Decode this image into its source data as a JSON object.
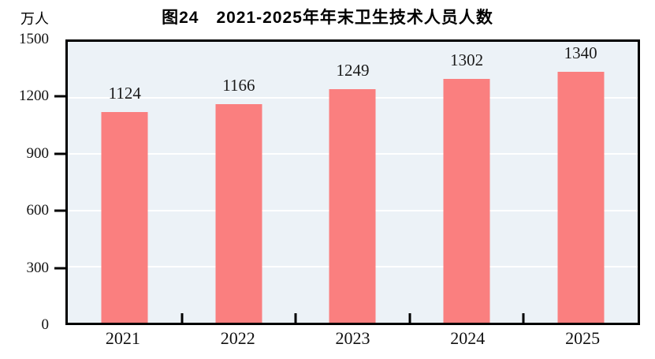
{
  "chart_data": {
    "type": "bar",
    "title": "图24　2021-2025年年末卫生技术人员人数",
    "unit_label": "万人",
    "categories": [
      "2021",
      "2022",
      "2023",
      "2024",
      "2025"
    ],
    "values": [
      1124,
      1166,
      1249,
      1302,
      1340
    ],
    "ylim": [
      0,
      1500
    ],
    "yticks": [
      0,
      300,
      600,
      900,
      1200,
      1500
    ],
    "grid": "horizontal",
    "legend_position": "none",
    "colors": {
      "bar": "#FA7F7F",
      "plot_bg": "#ECF2F7",
      "gridline": "#FFFFFF",
      "axis": "#000000",
      "text": "#000000"
    }
  }
}
